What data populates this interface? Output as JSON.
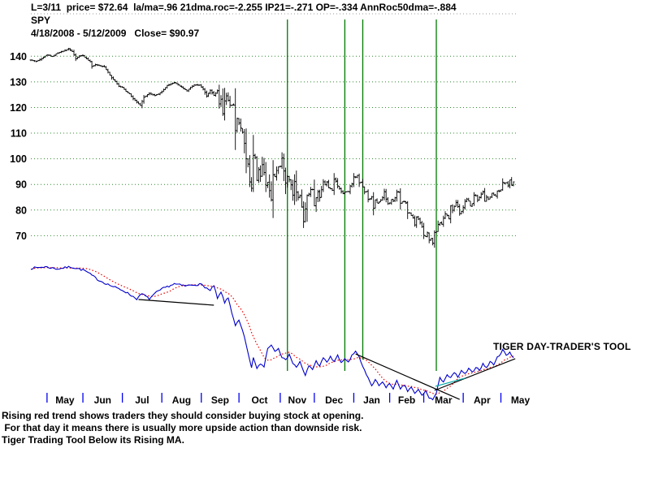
{
  "header": {
    "stats_line": "L=3/11  price= $72.64  la/ma=.96 21dma.roc=-2.255 IP21=-.271 OP=-.334 AnnRoc50dma=-.884",
    "symbol": "SPY",
    "range_line": "4/18/2008 - 5/12/2009   Close= $90.97"
  },
  "annotations": {
    "tool_label": "TIGER DAY-TRADER'S TOOL",
    "lines": [
      "Rising red trend shows traders they should consider buying stock at opening.",
      " For that day it means there is usually more upside action than downside risk.",
      "Tiger Trading Tool Below its Rising MA."
    ]
  },
  "colors": {
    "background": "#ffffff",
    "bars": "#000000",
    "grid_green": "#2e8b2e",
    "signal_green": "#007a00",
    "indicator_blue": "#0000cc",
    "ma_red": "#ee0000",
    "teal_line": "#00a8a8",
    "month_tick_blue": "#0000ee",
    "trendline_black": "#000000",
    "top_border_gray": "#9a9a9a"
  },
  "chart_data": {
    "type": "ohlc-bar",
    "title": "SPY",
    "date_range": "4/18/2008 - 5/12/2009",
    "last_close": 90.97,
    "price_axis_ticks": [
      140,
      130,
      120,
      110,
      100,
      90,
      80,
      70
    ],
    "ylim": [
      65,
      146
    ],
    "grid": "dotted-horizontal",
    "months": [
      "May",
      "Jun",
      "Jul",
      "Aug",
      "Sep",
      "Oct",
      "Nov",
      "Dec",
      "Jan",
      "Feb",
      "Mar",
      "Apr",
      "May"
    ],
    "month_start_days": [
      9,
      29,
      51,
      73,
      95,
      116,
      139,
      158,
      180,
      200,
      219,
      241,
      262
    ],
    "days_total": 270,
    "price_close_anchors": [
      [
        0,
        138.5
      ],
      [
        3,
        138.0
      ],
      [
        6,
        139.2
      ],
      [
        9,
        140.5
      ],
      [
        12,
        140.0
      ],
      [
        15,
        141.3
      ],
      [
        18,
        142.0
      ],
      [
        21,
        143.0
      ],
      [
        23,
        141.8
      ],
      [
        25,
        139.0
      ],
      [
        27,
        140.2
      ],
      [
        29,
        140.3
      ],
      [
        31,
        139.0
      ],
      [
        33,
        137.8
      ],
      [
        34,
        136.0
      ],
      [
        36,
        136.8
      ],
      [
        38,
        136.4
      ],
      [
        41,
        135.8
      ],
      [
        43,
        133.8
      ],
      [
        45,
        131.6
      ],
      [
        47,
        130.2
      ],
      [
        49,
        128.2
      ],
      [
        51,
        127.9
      ],
      [
        53,
        126.3
      ],
      [
        55,
        125.3
      ],
      [
        57,
        123.4
      ],
      [
        59,
        122.0
      ],
      [
        61,
        120.8
      ],
      [
        63,
        124.0
      ],
      [
        66,
        125.5
      ],
      [
        69,
        124.6
      ],
      [
        71,
        125.3
      ],
      [
        73,
        126.2
      ],
      [
        76,
        128.6
      ],
      [
        80,
        129.8
      ],
      [
        84,
        127.9
      ],
      [
        87,
        126.5
      ],
      [
        89,
        127.8
      ],
      [
        91,
        128.9
      ],
      [
        94,
        128.8
      ],
      [
        96,
        127.2
      ],
      [
        98,
        124.4
      ],
      [
        100,
        126.7
      ],
      [
        102,
        124.7
      ],
      [
        104,
        126.5
      ],
      [
        105,
        121.4
      ],
      [
        106,
        123.2
      ],
      [
        107,
        117.6
      ],
      [
        108,
        122.6
      ],
      [
        109,
        124.5
      ],
      [
        111,
        120.9
      ],
      [
        113,
        121.0
      ],
      [
        114,
        111.0
      ],
      [
        115,
        115.8
      ],
      [
        117,
        112.0
      ],
      [
        118,
        110.3
      ],
      [
        119,
        106.0
      ],
      [
        120,
        100.0
      ],
      [
        121,
        98.0
      ],
      [
        122,
        91.0
      ],
      [
        123,
        88.5
      ],
      [
        124,
        101.3
      ],
      [
        125,
        100.6
      ],
      [
        126,
        91.6
      ],
      [
        127,
        95.7
      ],
      [
        128,
        93.2
      ],
      [
        129,
        97.7
      ],
      [
        130,
        94.7
      ],
      [
        131,
        89.7
      ],
      [
        132,
        90.9
      ],
      [
        133,
        87.6
      ],
      [
        134,
        84.0
      ],
      [
        135,
        93.8
      ],
      [
        136,
        93.1
      ],
      [
        137,
        95.4
      ],
      [
        138,
        96.8
      ],
      [
        139,
        96.9
      ],
      [
        140,
        100.4
      ],
      [
        141,
        95.2
      ],
      [
        142,
        90.5
      ],
      [
        143,
        93.1
      ],
      [
        144,
        91.9
      ],
      [
        145,
        89.9
      ],
      [
        146,
        85.8
      ],
      [
        147,
        91.2
      ],
      [
        148,
        87.0
      ],
      [
        149,
        84.9
      ],
      [
        150,
        85.7
      ],
      [
        151,
        81.1
      ],
      [
        152,
        75.5
      ],
      [
        153,
        80.4
      ],
      [
        154,
        85.7
      ],
      [
        155,
        86.3
      ],
      [
        156,
        88.0
      ],
      [
        157,
        88.0
      ],
      [
        158,
        81.6
      ],
      [
        159,
        84.9
      ],
      [
        160,
        87.1
      ],
      [
        161,
        84.8
      ],
      [
        162,
        87.9
      ],
      [
        163,
        91.0
      ],
      [
        164,
        89.8
      ],
      [
        165,
        90.9
      ],
      [
        166,
        88.6
      ],
      [
        167,
        88.3
      ],
      [
        168,
        87.7
      ],
      [
        169,
        92.0
      ],
      [
        170,
        91.2
      ],
      [
        171,
        89.4
      ],
      [
        172,
        88.5
      ],
      [
        173,
        87.2
      ],
      [
        174,
        86.4
      ],
      [
        175,
        87.0
      ],
      [
        176,
        87.2
      ],
      [
        177,
        87.2
      ],
      [
        178,
        89.4
      ],
      [
        179,
        90.3
      ],
      [
        180,
        93.0
      ],
      [
        181,
        92.9
      ],
      [
        182,
        93.5
      ],
      [
        183,
        90.6
      ],
      [
        184,
        90.9
      ],
      [
        185,
        89.0
      ],
      [
        186,
        87.0
      ],
      [
        187,
        87.2
      ],
      [
        188,
        84.2
      ],
      [
        189,
        84.3
      ],
      [
        190,
        85.1
      ],
      [
        191,
        80.6
      ],
      [
        192,
        84.0
      ],
      [
        193,
        82.8
      ],
      [
        194,
        83.1
      ],
      [
        195,
        83.9
      ],
      [
        196,
        84.9
      ],
      [
        197,
        87.2
      ],
      [
        198,
        84.2
      ],
      [
        199,
        82.5
      ],
      [
        200,
        82.8
      ],
      [
        201,
        84.1
      ],
      [
        202,
        83.5
      ],
      [
        203,
        84.8
      ],
      [
        204,
        87.0
      ],
      [
        205,
        86.9
      ],
      [
        206,
        82.7
      ],
      [
        207,
        83.2
      ],
      [
        208,
        83.4
      ],
      [
        209,
        82.7
      ],
      [
        210,
        78.9
      ],
      [
        211,
        78.8
      ],
      [
        212,
        77.9
      ],
      [
        213,
        77.0
      ],
      [
        214,
        74.2
      ],
      [
        215,
        77.2
      ],
      [
        216,
        76.4
      ],
      [
        217,
        75.1
      ],
      [
        218,
        73.5
      ],
      [
        219,
        70.1
      ],
      [
        220,
        69.6
      ],
      [
        221,
        71.2
      ],
      [
        222,
        68.3
      ],
      [
        223,
        68.9
      ],
      [
        224,
        67.1
      ],
      [
        225,
        71.3
      ],
      [
        226,
        71.6
      ],
      [
        227,
        74.4
      ],
      [
        228,
        75.0
      ],
      [
        229,
        74.5
      ],
      [
        230,
        76.8
      ],
      [
        231,
        78.5
      ],
      [
        232,
        77.9
      ],
      [
        233,
        76.5
      ],
      [
        234,
        81.6
      ],
      [
        235,
        79.9
      ],
      [
        236,
        81.3
      ],
      [
        237,
        83.0
      ],
      [
        238,
        81.3
      ],
      [
        239,
        78.6
      ],
      [
        240,
        79.5
      ],
      [
        241,
        81.0
      ],
      [
        242,
        83.4
      ],
      [
        243,
        84.3
      ],
      [
        244,
        83.5
      ],
      [
        245,
        81.6
      ],
      [
        246,
        82.5
      ],
      [
        247,
        85.8
      ],
      [
        248,
        85.6
      ],
      [
        249,
        83.9
      ],
      [
        250,
        85.0
      ],
      [
        251,
        86.3
      ],
      [
        252,
        87.1
      ],
      [
        253,
        83.4
      ],
      [
        254,
        85.0
      ],
      [
        255,
        84.3
      ],
      [
        256,
        85.1
      ],
      [
        257,
        86.6
      ],
      [
        258,
        85.8
      ],
      [
        259,
        85.5
      ],
      [
        260,
        87.4
      ],
      [
        261,
        87.3
      ],
      [
        262,
        87.9
      ],
      [
        263,
        90.8
      ],
      [
        264,
        90.4
      ],
      [
        265,
        90.7
      ],
      [
        266,
        89.4
      ],
      [
        267,
        91.7
      ],
      [
        268,
        89.6
      ],
      [
        269,
        90.97
      ]
    ],
    "indicator": {
      "name": "Tiger Day-Trader's Tool",
      "scale": "0-100 relative",
      "ma_window": 13,
      "anchors": [
        [
          0,
          94
        ],
        [
          8,
          95
        ],
        [
          15,
          93.5
        ],
        [
          22,
          95
        ],
        [
          30,
          92.5
        ],
        [
          38,
          85.5
        ],
        [
          45,
          81.5
        ],
        [
          52,
          78
        ],
        [
          59,
          72.5
        ],
        [
          62,
          76
        ],
        [
          66,
          72.5
        ],
        [
          70,
          77
        ],
        [
          74,
          80
        ],
        [
          80,
          83
        ],
        [
          86,
          81.5
        ],
        [
          91,
          82.5
        ],
        [
          95,
          82.5
        ],
        [
          98,
          80
        ],
        [
          100,
          78
        ],
        [
          102,
          82
        ],
        [
          104,
          72.5
        ],
        [
          106,
          77
        ],
        [
          108,
          70
        ],
        [
          110,
          73
        ],
        [
          112,
          63
        ],
        [
          114,
          54
        ],
        [
          116,
          57
        ],
        [
          118,
          50
        ],
        [
          120,
          40
        ],
        [
          122,
          28.5
        ],
        [
          123,
          24
        ],
        [
          124,
          31.5
        ],
        [
          126,
          23
        ],
        [
          128,
          27
        ],
        [
          130,
          24.5
        ],
        [
          132,
          38
        ],
        [
          134,
          40
        ],
        [
          136,
          36
        ],
        [
          138,
          38
        ],
        [
          140,
          31.5
        ],
        [
          142,
          29
        ],
        [
          144,
          34
        ],
        [
          146,
          27
        ],
        [
          148,
          24.5
        ],
        [
          150,
          28
        ],
        [
          152,
          21
        ],
        [
          153,
          18.5
        ],
        [
          155,
          25.5
        ],
        [
          157,
          23
        ],
        [
          159,
          28.5
        ],
        [
          161,
          25.5
        ],
        [
          163,
          30.5
        ],
        [
          165,
          28
        ],
        [
          167,
          31.5
        ],
        [
          169,
          28.5
        ],
        [
          171,
          32.5
        ],
        [
          173,
          27
        ],
        [
          175,
          30.5
        ],
        [
          177,
          28
        ],
        [
          179,
          32.5
        ],
        [
          181,
          35
        ],
        [
          183,
          31.5
        ],
        [
          185,
          24.5
        ],
        [
          187,
          19
        ],
        [
          189,
          14.5
        ],
        [
          190,
          11
        ],
        [
          192,
          15.5
        ],
        [
          194,
          11.5
        ],
        [
          196,
          14.5
        ],
        [
          198,
          9.5
        ],
        [
          200,
          13
        ],
        [
          202,
          9.5
        ],
        [
          204,
          14.5
        ],
        [
          206,
          8.5
        ],
        [
          208,
          12
        ],
        [
          210,
          7.5
        ],
        [
          212,
          10.5
        ],
        [
          214,
          5.5
        ],
        [
          216,
          8.5
        ],
        [
          218,
          4.5
        ],
        [
          220,
          7.5
        ],
        [
          222,
          3
        ],
        [
          224,
          1.5
        ],
        [
          226,
          6
        ],
        [
          228,
          16.5
        ],
        [
          230,
          14.5
        ],
        [
          232,
          19
        ],
        [
          234,
          16.5
        ],
        [
          236,
          20.5
        ],
        [
          238,
          17.5
        ],
        [
          240,
          21.5
        ],
        [
          242,
          19.5
        ],
        [
          244,
          23
        ],
        [
          246,
          20.5
        ],
        [
          248,
          24.5
        ],
        [
          250,
          22.5
        ],
        [
          252,
          26.5
        ],
        [
          254,
          24
        ],
        [
          256,
          28
        ],
        [
          258,
          26.5
        ],
        [
          260,
          31
        ],
        [
          262,
          34.5
        ],
        [
          263,
          37
        ],
        [
          265,
          32.5
        ],
        [
          267,
          35
        ],
        [
          269,
          31
        ]
      ]
    },
    "signal_vline_days": [
      143,
      175,
      185,
      226
    ],
    "indicator_trendlines": [
      [
        [
          60,
          72
        ],
        [
          102,
          68
        ]
      ],
      [
        [
          181,
          33.7
        ],
        [
          239,
          1.7
        ]
      ],
      [
        [
          225,
          8
        ],
        [
          270,
          30.3
        ]
      ]
    ],
    "teal_segment": [
      [
        225.5,
        10.9
      ],
      [
        242,
        16.6
      ]
    ]
  }
}
